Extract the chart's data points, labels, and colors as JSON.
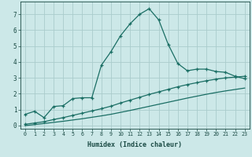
{
  "xlabel": "Humidex (Indice chaleur)",
  "bg_color": "#cce8e8",
  "grid_color": "#aacccc",
  "line_color": "#1a6e64",
  "xlim": [
    -0.5,
    23.5
  ],
  "ylim": [
    -0.2,
    7.8
  ],
  "xticks": [
    0,
    1,
    2,
    3,
    4,
    5,
    6,
    7,
    8,
    9,
    10,
    11,
    12,
    13,
    14,
    15,
    16,
    17,
    18,
    19,
    20,
    21,
    22,
    23
  ],
  "yticks": [
    0,
    1,
    2,
    3,
    4,
    5,
    6,
    7
  ],
  "series1_x": [
    0,
    1,
    2,
    3,
    4,
    5,
    6,
    7,
    8,
    9,
    10,
    11,
    12,
    13,
    14,
    15,
    16,
    17,
    18,
    19,
    20,
    21,
    22,
    23
  ],
  "series1_y": [
    0.7,
    0.9,
    0.5,
    1.2,
    1.25,
    1.7,
    1.75,
    1.75,
    3.8,
    4.65,
    5.65,
    6.4,
    7.0,
    7.35,
    6.65,
    5.1,
    3.9,
    3.45,
    3.55,
    3.55,
    3.4,
    3.35,
    3.1,
    2.95
  ],
  "series2_x": [
    0,
    1,
    2,
    3,
    4,
    5,
    6,
    7,
    8,
    9,
    10,
    11,
    12,
    13,
    14,
    15,
    16,
    17,
    18,
    19,
    20,
    21,
    22,
    23
  ],
  "series2_y": [
    0.08,
    0.16,
    0.24,
    0.38,
    0.5,
    0.64,
    0.78,
    0.92,
    1.06,
    1.22,
    1.42,
    1.6,
    1.78,
    1.96,
    2.12,
    2.28,
    2.44,
    2.58,
    2.7,
    2.82,
    2.92,
    3.0,
    3.05,
    3.1
  ],
  "series3_x": [
    0,
    1,
    2,
    3,
    4,
    5,
    6,
    7,
    8,
    9,
    10,
    11,
    12,
    13,
    14,
    15,
    16,
    17,
    18,
    19,
    20,
    21,
    22,
    23
  ],
  "series3_y": [
    0.0,
    0.06,
    0.13,
    0.2,
    0.27,
    0.35,
    0.43,
    0.52,
    0.61,
    0.71,
    0.83,
    0.95,
    1.08,
    1.21,
    1.34,
    1.47,
    1.6,
    1.73,
    1.85,
    1.97,
    2.08,
    2.18,
    2.27,
    2.36
  ]
}
